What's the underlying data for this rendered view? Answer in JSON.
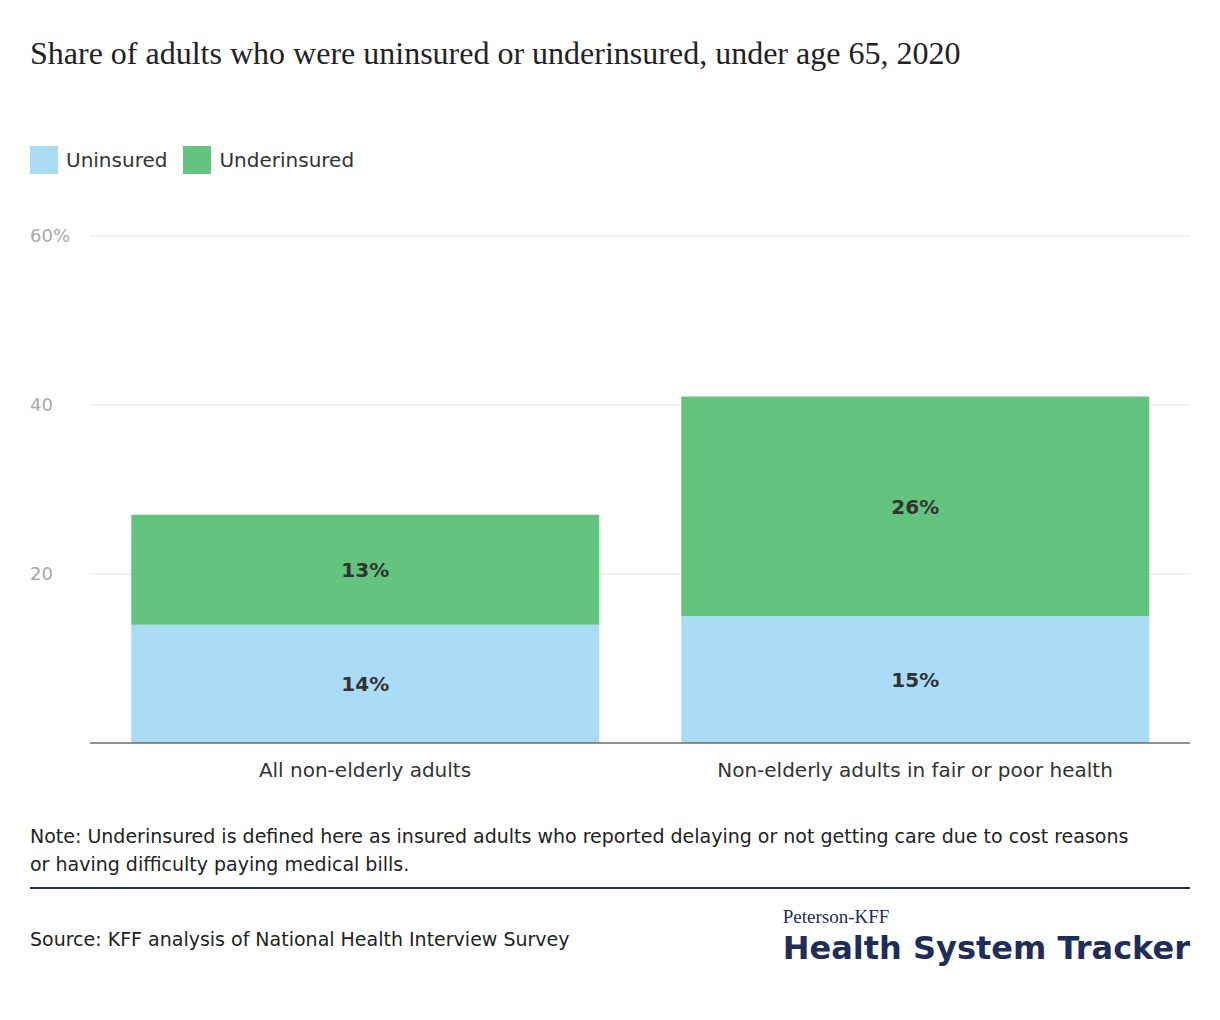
{
  "chart_data": {
    "type": "bar",
    "title": "Share of adults who were uninsured or underinsured, under age 65, 2020",
    "categories": [
      "All non-elderly adults",
      "Non-elderly adults in fair or poor health"
    ],
    "series": [
      {
        "name": "Uninsured",
        "color": "#aadcf5",
        "values": [
          14,
          15
        ],
        "value_labels": [
          "14%",
          "15%"
        ]
      },
      {
        "name": "Underinsured",
        "color": "#63c57d",
        "values": [
          13,
          26
        ],
        "value_labels": [
          "13%",
          "26%"
        ]
      }
    ],
    "stacked": true,
    "data_labels": true,
    "ylim": [
      0,
      60
    ],
    "yticks": [
      20,
      40,
      {
        "value": 60,
        "label": "60%"
      }
    ],
    "grid": true,
    "legend": "top-left",
    "note": "Note: Underinsured is defined here as insured adults who reported delaying or not getting care due to cost reasons or having difficulty paying medical bills.",
    "source": "Source: KFF analysis of National Health Interview Survey",
    "credit": {
      "org": "Peterson-KFF",
      "name": "Health System Tracker"
    }
  }
}
